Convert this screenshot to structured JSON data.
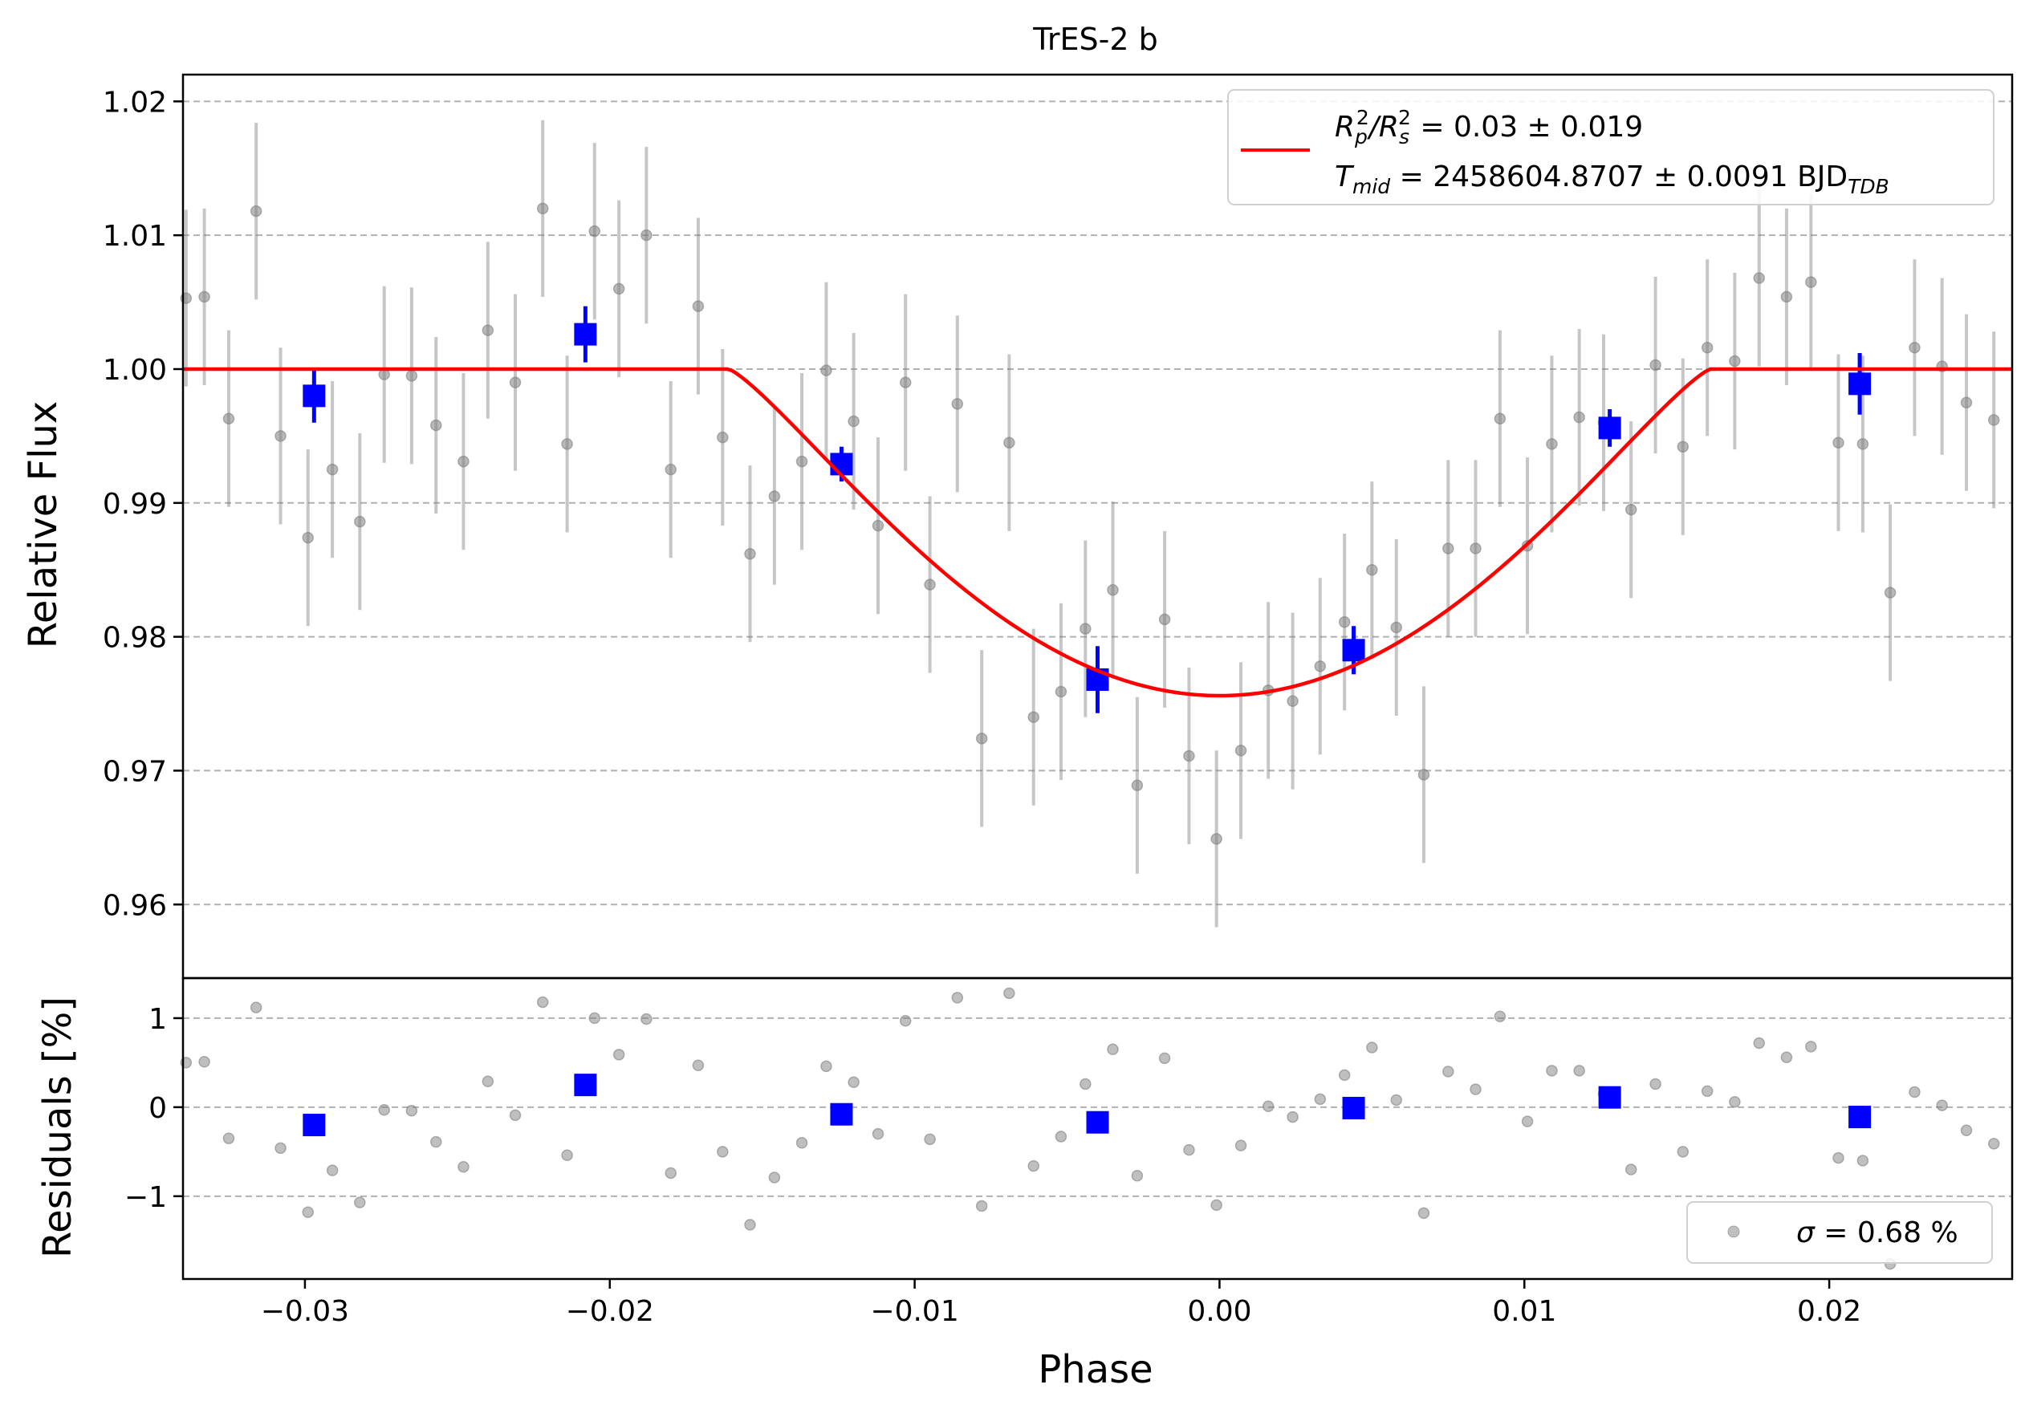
{
  "chart_data": [
    {
      "type": "scatter",
      "title": "TrES-2 b",
      "xlabel": "",
      "ylabel": "Relative Flux",
      "xlim": [
        -0.034,
        0.026
      ],
      "ylim": [
        0.9545,
        1.022
      ],
      "yticks": [
        0.96,
        0.97,
        0.98,
        0.99,
        1.0,
        1.01,
        1.02
      ],
      "ytick_labels": [
        "0.96",
        "0.97",
        "0.98",
        "0.99",
        "1.00",
        "1.01",
        "1.02"
      ],
      "grid": "horizontal-dashed",
      "legend_position": "top-right",
      "legend": {
        "line1": {
          "sym": "R",
          "sub1": "p",
          "sup1": "2",
          "slash": "/R",
          "sub2": "s",
          "sup2": "2",
          "rest": " = 0.03 ± 0.019"
        },
        "line2": {
          "sym": "T",
          "sub": "mid",
          "rest": " = 2458604.8707 ± 0.0091 BJD",
          "rest_sub": "TDB"
        }
      },
      "model": {
        "color": "#ff0000",
        "baseline": 1.0,
        "depth": 0.0244,
        "t_ingress": 0.0161,
        "x": [
          -0.034,
          -0.0161,
          -0.014,
          -0.012,
          -0.01,
          -0.008,
          -0.006,
          -0.004,
          -0.002,
          0.0,
          0.002,
          0.004,
          0.006,
          0.008,
          0.01,
          0.012,
          0.014,
          0.0161,
          0.026
        ],
        "y": [
          1.0,
          1.0,
          0.9981,
          0.9944,
          0.9898,
          0.9851,
          0.9811,
          0.9781,
          0.9762,
          0.9756,
          0.9762,
          0.9781,
          0.9811,
          0.9851,
          0.9898,
          0.9944,
          0.9981,
          1.0,
          1.0
        ]
      },
      "series": [
        {
          "color": "#808080",
          "x": [
            -0.0339,
            -0.0333,
            -0.0325,
            -0.0316,
            -0.0308,
            -0.0299,
            -0.0291,
            -0.0282,
            -0.0274,
            -0.0265,
            -0.0257,
            -0.0248,
            -0.024,
            -0.0231,
            -0.0222,
            -0.0214,
            -0.0205,
            -0.0197,
            -0.0188,
            -0.018,
            -0.0171,
            -0.0163,
            -0.0154,
            -0.0146,
            -0.0137,
            -0.0129,
            -0.012,
            -0.0112,
            -0.0103,
            -0.0095,
            -0.0086,
            -0.0078,
            -0.0069,
            -0.0061,
            -0.0052,
            -0.0044,
            -0.0035,
            -0.0027,
            -0.0018,
            -0.001,
            -0.0001,
            0.0007,
            0.0016,
            0.0024,
            0.0033,
            0.0041,
            0.005,
            0.0058,
            0.0067,
            0.0075,
            0.0084,
            0.0092,
            0.0101,
            0.0109,
            0.0118,
            0.0126,
            0.0135,
            0.0143,
            0.0152,
            0.016,
            0.0169,
            0.0177,
            0.0186,
            0.0194,
            0.0203,
            0.0211,
            0.022,
            0.0228,
            0.0237,
            0.0245,
            0.0254
          ],
          "y": [
            1.0053,
            1.0054,
            0.9963,
            1.0118,
            0.995,
            0.9874,
            0.9925,
            0.9886,
            0.9996,
            0.9995,
            0.9958,
            0.9931,
            1.0029,
            0.999,
            1.012,
            0.9944,
            1.0103,
            1.006,
            1.01,
            0.9925,
            1.0047,
            0.9949,
            0.9862,
            0.9905,
            0.9931,
            0.9999,
            0.9961,
            0.9883,
            0.999,
            0.9839,
            0.9974,
            0.9724,
            0.9945,
            0.974,
            0.9759,
            0.9806,
            0.9835,
            0.9689,
            0.9813,
            0.9711,
            0.9649,
            0.9715,
            0.976,
            0.9752,
            0.9778,
            0.9811,
            0.985,
            0.9807,
            0.9697,
            0.9866,
            0.9866,
            0.9963,
            0.9868,
            0.9944,
            0.9964,
            0.996,
            0.9895,
            1.0003,
            0.9942,
            1.0016,
            1.0006,
            1.0068,
            1.0054,
            1.0065,
            0.9945,
            0.9944,
            0.9833,
            1.0016,
            1.0002,
            0.9975,
            0.9962
          ],
          "err": 0.0066
        },
        {
          "color": "#0000ff",
          "x": [
            -0.0297,
            -0.0208,
            -0.0124,
            -0.004,
            0.0044,
            0.0128,
            0.021
          ],
          "y": [
            0.998,
            1.0026,
            0.9929,
            0.9768,
            0.979,
            0.9956,
            0.9989
          ],
          "err": [
            0.002,
            0.0021,
            0.0013,
            0.0025,
            0.0018,
            0.0014,
            0.0023
          ]
        }
      ]
    },
    {
      "type": "scatter",
      "title": "",
      "xlabel": "Phase",
      "ylabel": "Residuals [%]",
      "xlim": [
        -0.034,
        0.026
      ],
      "ylim": [
        -1.93,
        1.45
      ],
      "xticks": [
        -0.03,
        -0.02,
        -0.01,
        0.0,
        0.01,
        0.02
      ],
      "xtick_labels": [
        "−0.03",
        "−0.02",
        "−0.01",
        "0.00",
        "0.01",
        "0.02"
      ],
      "yticks": [
        -1,
        0,
        1
      ],
      "ytick_labels": [
        "−1",
        "0",
        "1"
      ],
      "grid": "horizontal-dashed",
      "legend_position": "bottom-right",
      "legend": {
        "sym": "σ",
        "rest": " = 0.68 %"
      },
      "series": [
        {
          "color": "#808080",
          "x": [
            -0.0339,
            -0.0333,
            -0.0325,
            -0.0316,
            -0.0308,
            -0.0299,
            -0.0291,
            -0.0282,
            -0.0274,
            -0.0265,
            -0.0257,
            -0.0248,
            -0.024,
            -0.0231,
            -0.0222,
            -0.0214,
            -0.0205,
            -0.0197,
            -0.0188,
            -0.018,
            -0.0171,
            -0.0163,
            -0.0154,
            -0.0146,
            -0.0137,
            -0.0129,
            -0.012,
            -0.0112,
            -0.0103,
            -0.0095,
            -0.0086,
            -0.0078,
            -0.0069,
            -0.0061,
            -0.0052,
            -0.0044,
            -0.0035,
            -0.0027,
            -0.0018,
            -0.001,
            -0.0001,
            0.0007,
            0.0016,
            0.0024,
            0.0033,
            0.0041,
            0.005,
            0.0058,
            0.0067,
            0.0075,
            0.0084,
            0.0092,
            0.0101,
            0.0109,
            0.0118,
            0.0126,
            0.0135,
            0.0143,
            0.0152,
            0.016,
            0.0169,
            0.0177,
            0.0186,
            0.0194,
            0.0203,
            0.0211,
            0.022,
            0.0228,
            0.0237,
            0.0245,
            0.0254
          ],
          "y": [
            0.5,
            0.51,
            -0.35,
            1.12,
            -0.46,
            -1.18,
            -0.71,
            -1.07,
            -0.03,
            -0.04,
            -0.39,
            -0.67,
            0.29,
            -0.09,
            1.18,
            -0.54,
            1.0,
            0.59,
            0.99,
            -0.74,
            0.47,
            -0.5,
            -1.32,
            -0.79,
            -0.4,
            0.46,
            0.28,
            -0.3,
            0.97,
            -0.36,
            1.23,
            -1.11,
            1.28,
            -0.66,
            -0.33,
            0.26,
            0.65,
            -0.77,
            0.55,
            -0.48,
            -1.1,
            -0.43,
            0.01,
            -0.11,
            0.09,
            0.36,
            0.67,
            0.08,
            -1.19,
            0.4,
            0.2,
            1.02,
            -0.16,
            0.41,
            0.41,
            0.15,
            -0.7,
            0.26,
            -0.5,
            0.18,
            0.06,
            0.72,
            0.56,
            0.68,
            -0.57,
            -0.6,
            -1.76,
            0.17,
            0.02,
            -0.26,
            -0.41
          ]
        },
        {
          "color": "#0000ff",
          "x": [
            -0.0297,
            -0.0208,
            -0.0124,
            -0.004,
            0.0044,
            0.0128,
            0.021
          ],
          "y": [
            -0.2,
            0.25,
            -0.08,
            -0.17,
            -0.01,
            0.11,
            -0.11
          ]
        }
      ]
    }
  ]
}
